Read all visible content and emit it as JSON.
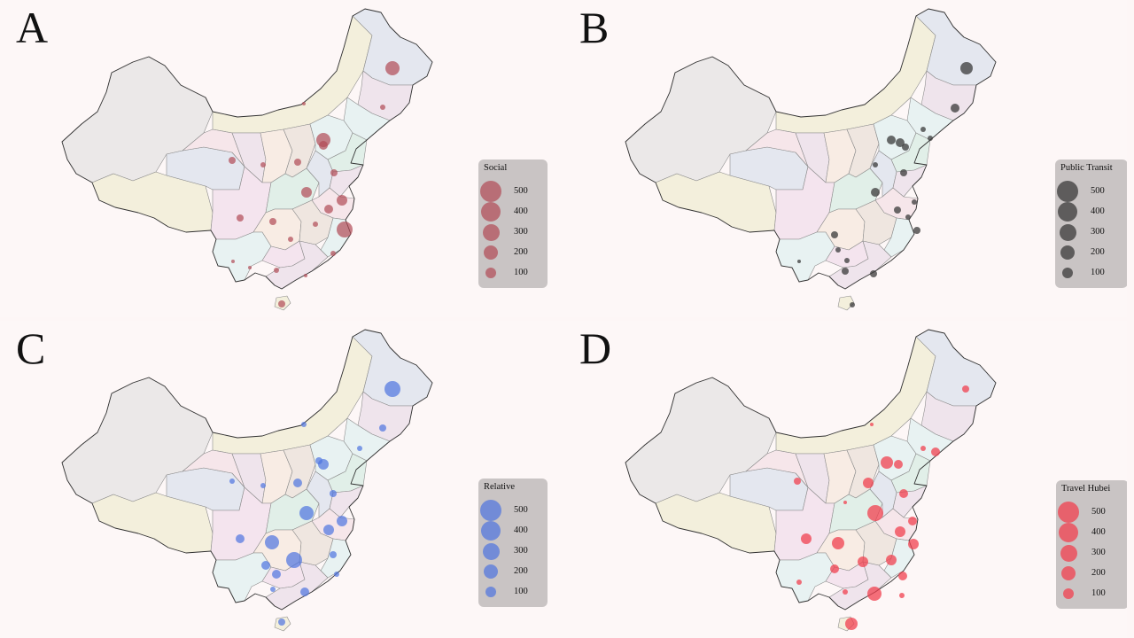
{
  "panels": [
    {
      "letter": "A",
      "legend_title": "Social",
      "bubble_color": "#b04a55",
      "bubble_opacity": 0.7
    },
    {
      "letter": "B",
      "legend_title": "Public Transit",
      "bubble_color": "#3a3a3a",
      "bubble_opacity": 0.75
    },
    {
      "letter": "C",
      "legend_title": "Relative",
      "bubble_color": "#4d74e0",
      "bubble_opacity": 0.7
    },
    {
      "letter": "D",
      "legend_title": "Travel Hubei",
      "bubble_color": "#f0404f",
      "bubble_opacity": 0.75
    }
  ],
  "legend_values": [
    "500",
    "400",
    "300",
    "200",
    "100"
  ],
  "region_fill_palette": [
    "#ebe8e8",
    "#f3efdc",
    "#e4e7ef",
    "#efe4ec",
    "#f6e6ea",
    "#e1efe8",
    "#e8f2f2",
    "#f8ece4",
    "#efe6e0",
    "#f4e4ee"
  ]
}
